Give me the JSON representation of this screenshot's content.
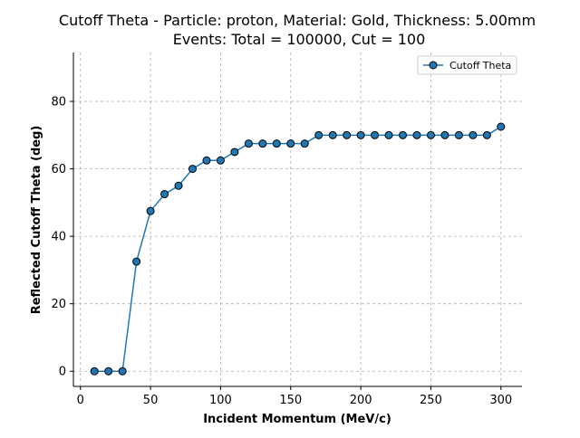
{
  "chart_data": {
    "type": "line",
    "title": "Cutoff Theta - Particle: proton, Material: Gold, Thickness: 5.00mm",
    "subtitle": "Events: Total = 100000, Cut = 100",
    "xlabel": "Incident Momentum (MeV/c)",
    "ylabel": "Reflected Cutoff Theta (deg)",
    "xlim": [
      -5,
      315
    ],
    "ylim": [
      -4.5,
      94.5
    ],
    "x_ticks": [
      0,
      50,
      100,
      150,
      200,
      250,
      300
    ],
    "y_ticks": [
      0,
      20,
      40,
      60,
      80
    ],
    "grid": true,
    "legend_position": "top-right",
    "series": [
      {
        "name": "Cutoff Theta",
        "color": "#1f77b4",
        "marker": "circle",
        "x": [
          10,
          20,
          30,
          40,
          50,
          60,
          70,
          80,
          90,
          100,
          110,
          120,
          130,
          140,
          150,
          160,
          170,
          180,
          190,
          200,
          210,
          220,
          230,
          240,
          250,
          260,
          270,
          280,
          290,
          300
        ],
        "y": [
          0,
          0,
          0,
          32.5,
          47.5,
          52.5,
          55,
          60,
          62.5,
          62.5,
          65,
          67.5,
          67.5,
          67.5,
          67.5,
          67.5,
          70,
          70,
          70,
          70,
          70,
          70,
          70,
          70,
          70,
          70,
          70,
          70,
          70,
          72.5
        ]
      }
    ]
  }
}
